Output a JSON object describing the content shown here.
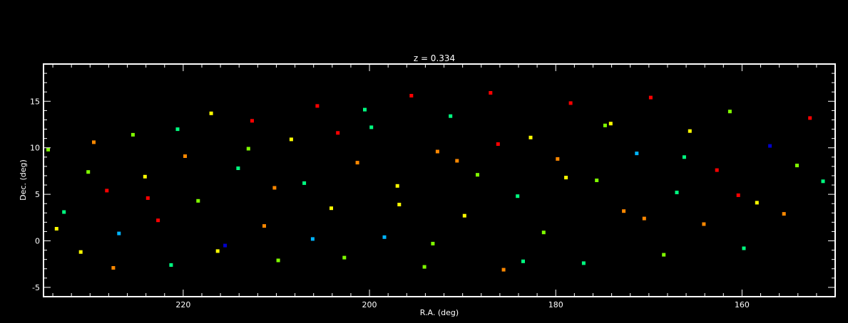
{
  "chart_data": {
    "type": "scatter",
    "title": "z = 0.334",
    "xlabel": "R.A. (deg)",
    "ylabel": "Dec. (deg)",
    "xlim": [
      235,
      150
    ],
    "ylim": [
      -6,
      19
    ],
    "x_reversed": true,
    "xticks": [
      220,
      200,
      180,
      160
    ],
    "yticks": [
      -5,
      0,
      5,
      10,
      15
    ],
    "x_minor_step": 2,
    "y_minor_step": 1,
    "grid": false,
    "legend": "none",
    "background": "#000000",
    "axis_color": "#ffffff",
    "marker": "square",
    "colormap": [
      "#0000cc",
      "#00b4ff",
      "#00ff80",
      "#80ff00",
      "#ffff00",
      "#ff8800",
      "#ff0000"
    ],
    "series": [
      {
        "color_index": [
          3,
          2,
          4,
          5,
          6,
          1,
          3,
          4,
          6,
          2,
          5,
          3,
          4,
          0,
          2,
          6,
          5,
          3,
          4,
          2,
          6,
          4,
          3,
          5,
          2,
          1,
          4,
          6,
          3,
          5,
          2,
          4,
          3,
          6,
          5,
          2,
          4,
          3,
          5,
          6,
          2,
          3,
          4,
          5,
          1,
          6,
          3,
          2,
          4,
          5,
          6,
          3,
          2,
          4,
          0,
          5,
          3,
          6,
          2,
          4,
          3,
          5,
          6,
          2,
          4,
          3,
          5,
          1,
          6,
          2,
          4,
          3,
          5,
          6,
          2,
          4,
          3,
          5,
          2,
          6
        ],
        "ra": [
          234.5,
          232.8,
          231.0,
          229.6,
          228.2,
          226.9,
          225.4,
          224.1,
          222.7,
          221.3,
          219.8,
          218.4,
          217.0,
          215.5,
          214.1,
          212.6,
          211.3,
          209.8,
          208.4,
          207.0,
          205.6,
          204.1,
          202.7,
          201.3,
          199.8,
          198.4,
          197.0,
          195.5,
          194.1,
          192.7,
          191.3,
          189.8,
          188.4,
          187.0,
          185.6,
          184.1,
          182.7,
          181.3,
          179.8,
          178.4,
          177.0,
          175.6,
          174.1,
          172.7,
          171.3,
          169.8,
          168.4,
          167.0,
          165.6,
          164.1,
          162.7,
          161.3,
          159.8,
          158.4,
          157.0,
          155.5,
          154.1,
          152.7,
          151.3,
          233.6,
          230.2,
          227.5,
          223.8,
          220.6,
          216.3,
          213.0,
          210.2,
          206.1,
          203.4,
          200.5,
          196.8,
          193.2,
          190.6,
          186.2,
          183.5,
          178.9,
          174.7,
          170.5,
          166.2,
          160.4
        ],
        "dec": [
          9.8,
          3.1,
          -1.2,
          10.6,
          5.4,
          0.8,
          11.4,
          6.9,
          2.2,
          -2.6,
          9.1,
          4.3,
          13.7,
          -0.5,
          7.8,
          12.9,
          1.6,
          -2.1,
          10.9,
          6.2,
          14.5,
          3.5,
          -1.8,
          8.4,
          12.2,
          0.4,
          5.9,
          15.6,
          -2.8,
          9.6,
          13.4,
          2.7,
          7.1,
          15.9,
          -3.1,
          4.8,
          11.1,
          0.9,
          8.8,
          14.8,
          -2.4,
          6.5,
          12.6,
          3.2,
          9.4,
          15.4,
          -1.5,
          5.2,
          11.8,
          1.8,
          7.6,
          13.9,
          -0.8,
          4.1,
          10.2,
          2.9,
          8.1,
          13.2,
          6.4,
          1.3,
          7.4,
          -2.9,
          4.6,
          12.0,
          -1.1,
          9.9,
          5.7,
          0.2,
          11.6,
          14.1,
          3.9,
          -0.3,
          8.6,
          10.4,
          -2.2,
          6.8,
          12.4,
          2.4,
          9.0,
          4.9
        ]
      }
    ]
  }
}
